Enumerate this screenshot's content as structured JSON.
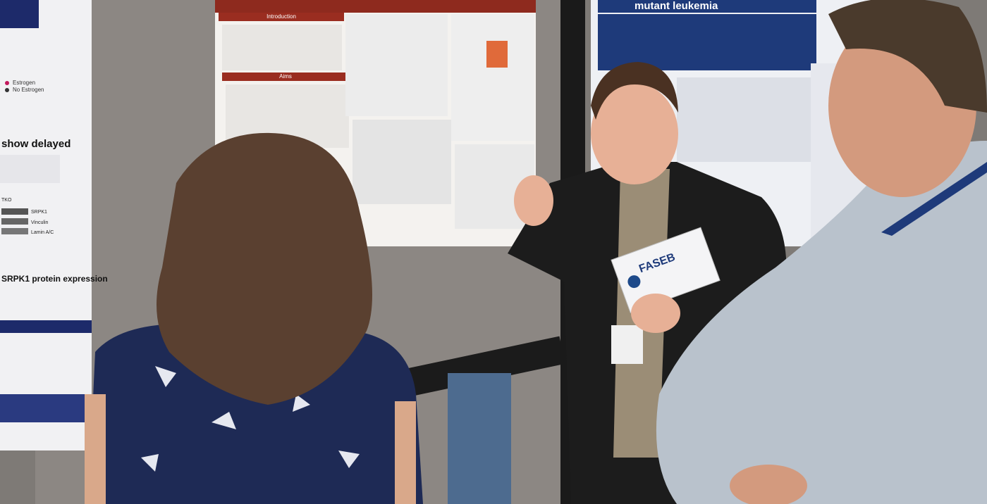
{
  "left_poster": {
    "heading": "show delayed",
    "section": "SRPK1 protein expression",
    "legend": [
      "Estrogen",
      "No Estrogen"
    ],
    "blot_label": "TKO",
    "blot_rows": [
      "SRPK1",
      "Vinculin",
      "Lamin A/C"
    ]
  },
  "center_poster": {
    "sections": [
      "Introduction",
      "Aims"
    ]
  },
  "right_poster": {
    "title": "mutant leukemia"
  },
  "folder": {
    "logo": "FASEB"
  }
}
